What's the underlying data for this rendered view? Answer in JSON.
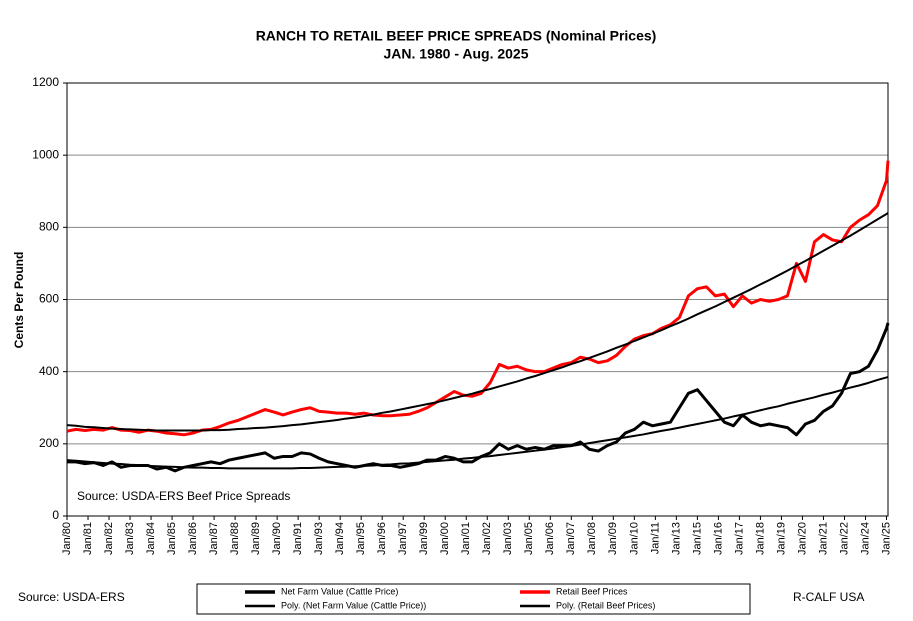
{
  "chart_data": {
    "type": "line",
    "title": "RANCH TO RETAIL BEEF PRICE SPREADS (Nominal Prices)",
    "subtitle": "JAN. 1980 - Aug. 2025",
    "ylabel": "Cents Per Pound",
    "annotation": "Source:  USDA-ERS Beef Price Spreads",
    "footer_source": "Source: USDA-ERS",
    "footer_credit": "R-CALF USA",
    "ylim": [
      0,
      1200
    ],
    "yticks": [
      0,
      200,
      400,
      600,
      800,
      1000,
      1200
    ],
    "xlim": [
      1980,
      2025.583
    ],
    "xticks": [
      {
        "value": 1980,
        "label": "Jan/80"
      },
      {
        "value": 1981.167,
        "label": "Jan/81"
      },
      {
        "value": 1982.333,
        "label": "Jan/82"
      },
      {
        "value": 1983.5,
        "label": "Jan/83"
      },
      {
        "value": 1984.667,
        "label": "Jan/84"
      },
      {
        "value": 1985.833,
        "label": "Jan/85"
      },
      {
        "value": 1987,
        "label": "Jan/86"
      },
      {
        "value": 1988.167,
        "label": "Jan/87"
      },
      {
        "value": 1989.333,
        "label": "Jan/88"
      },
      {
        "value": 1990.5,
        "label": "Jan/89"
      },
      {
        "value": 1991.667,
        "label": "Jan/90"
      },
      {
        "value": 1992.833,
        "label": "Jan/91"
      },
      {
        "value": 1994,
        "label": "Jan/93"
      },
      {
        "value": 1995.167,
        "label": "Jan/94"
      },
      {
        "value": 1996.333,
        "label": "Jan/95"
      },
      {
        "value": 1997.5,
        "label": "Jan/96"
      },
      {
        "value": 1998.667,
        "label": "Jan/97"
      },
      {
        "value": 1999.833,
        "label": "Jan/99"
      },
      {
        "value": 2001,
        "label": "Jan/00"
      },
      {
        "value": 2002.167,
        "label": "Jan/01"
      },
      {
        "value": 2003.333,
        "label": "Jan/02"
      },
      {
        "value": 2004.5,
        "label": "Jan/03"
      },
      {
        "value": 2005.667,
        "label": "Jan/05"
      },
      {
        "value": 2006.833,
        "label": "Jan/06"
      },
      {
        "value": 2008,
        "label": "Jan/07"
      },
      {
        "value": 2009.167,
        "label": "Jan/08"
      },
      {
        "value": 2010.333,
        "label": "Jan/09"
      },
      {
        "value": 2011.5,
        "label": "Jan/10"
      },
      {
        "value": 2012.667,
        "label": "Jan/11"
      },
      {
        "value": 2013.833,
        "label": "Jan/13"
      },
      {
        "value": 2015,
        "label": "Jan/15"
      },
      {
        "value": 2016.167,
        "label": "Jan/16"
      },
      {
        "value": 2017.333,
        "label": "Jan/17"
      },
      {
        "value": 2018.5,
        "label": "Jan/18"
      },
      {
        "value": 2019.667,
        "label": "Jan/19"
      },
      {
        "value": 2020.833,
        "label": "Jan/20"
      },
      {
        "value": 2022,
        "label": "Jan/21"
      },
      {
        "value": 2023.167,
        "label": "Jan/22"
      },
      {
        "value": 2024.333,
        "label": "Jan/24"
      },
      {
        "value": 2025.5,
        "label": "Jan/25"
      }
    ],
    "grid": true,
    "x": [
      1980,
      1980.5,
      1981,
      1981.5,
      1982,
      1982.5,
      1983,
      1983.5,
      1984,
      1984.5,
      1985,
      1985.5,
      1986,
      1986.5,
      1987,
      1987.5,
      1988,
      1988.5,
      1989,
      1989.5,
      1990,
      1990.5,
      1991,
      1991.5,
      1992,
      1992.5,
      1993,
      1993.5,
      1994,
      1994.5,
      1995,
      1995.5,
      1996,
      1996.5,
      1997,
      1997.5,
      1998,
      1998.5,
      1999,
      1999.5,
      2000,
      2000.5,
      2001,
      2001.5,
      2002,
      2002.5,
      2003,
      2003.5,
      2004,
      2004.5,
      2005,
      2005.5,
      2006,
      2006.5,
      2007,
      2007.5,
      2008,
      2008.5,
      2009,
      2009.5,
      2010,
      2010.5,
      2011,
      2011.5,
      2012,
      2012.5,
      2013,
      2013.5,
      2014,
      2014.5,
      2015,
      2015.5,
      2016,
      2016.5,
      2017,
      2017.5,
      2018,
      2018.5,
      2019,
      2019.5,
      2020,
      2020.5,
      2021,
      2021.5,
      2022,
      2022.5,
      2023,
      2023.5,
      2024,
      2024.5,
      2025,
      2025.5,
      2025.583
    ],
    "series": [
      {
        "name": "Net Farm Value (Cattle Price)",
        "color": "#000000",
        "width": 3,
        "values": [
          150,
          150,
          145,
          148,
          140,
          150,
          135,
          140,
          140,
          140,
          130,
          135,
          125,
          135,
          140,
          145,
          150,
          145,
          155,
          160,
          165,
          170,
          175,
          160,
          165,
          165,
          175,
          172,
          160,
          150,
          145,
          140,
          135,
          140,
          145,
          140,
          140,
          135,
          140,
          145,
          155,
          155,
          165,
          160,
          150,
          150,
          165,
          175,
          200,
          185,
          195,
          185,
          190,
          185,
          195,
          195,
          195,
          205,
          185,
          180,
          195,
          205,
          230,
          240,
          260,
          250,
          255,
          260,
          300,
          340,
          350,
          320,
          290,
          260,
          250,
          280,
          260,
          250,
          255,
          250,
          245,
          225,
          255,
          265,
          290,
          305,
          340,
          395,
          400,
          415,
          460,
          520,
          535
        ]
      },
      {
        "name": "Retail Beef Prices",
        "color": "#ff0000",
        "width": 3,
        "values": [
          235,
          240,
          237,
          240,
          238,
          245,
          238,
          237,
          232,
          238,
          235,
          230,
          228,
          225,
          230,
          238,
          240,
          248,
          258,
          265,
          275,
          285,
          295,
          288,
          280,
          288,
          295,
          300,
          290,
          288,
          285,
          285,
          282,
          285,
          280,
          278,
          278,
          280,
          282,
          290,
          300,
          315,
          330,
          345,
          335,
          332,
          340,
          370,
          420,
          410,
          415,
          405,
          400,
          400,
          410,
          420,
          425,
          440,
          435,
          425,
          430,
          445,
          470,
          490,
          500,
          505,
          520,
          530,
          550,
          610,
          630,
          635,
          610,
          615,
          580,
          610,
          590,
          600,
          595,
          600,
          610,
          700,
          650,
          760,
          780,
          765,
          760,
          800,
          820,
          835,
          860,
          930,
          985
        ]
      },
      {
        "name": "Poly. (Net Farm Value (Cattle Price))",
        "color": "#000000",
        "width": 2,
        "values": [
          155,
          153,
          151,
          149,
          147,
          145,
          144,
          142,
          141,
          139,
          138,
          137,
          136,
          135,
          134,
          134,
          133,
          133,
          132,
          132,
          132,
          132,
          132,
          132,
          132,
          132,
          133,
          133,
          134,
          135,
          136,
          137,
          138,
          139,
          140,
          142,
          143,
          145,
          146,
          148,
          150,
          152,
          154,
          156,
          159,
          161,
          164,
          166,
          169,
          172,
          175,
          178,
          181,
          184,
          187,
          191,
          194,
          198,
          202,
          206,
          210,
          214,
          218,
          222,
          226,
          231,
          236,
          240,
          245,
          250,
          255,
          260,
          265,
          270,
          276,
          281,
          287,
          293,
          299,
          304,
          311,
          317,
          323,
          329,
          336,
          342,
          349,
          356,
          362,
          369,
          377,
          384,
          385
        ]
      },
      {
        "name": "Poly. (Retail Beef Prices)",
        "color": "#000000",
        "width": 2,
        "values": [
          252,
          250,
          247,
          246,
          244,
          242,
          241,
          240,
          239,
          238,
          237,
          237,
          237,
          237,
          237,
          237,
          238,
          238,
          239,
          241,
          242,
          244,
          245,
          247,
          249,
          252,
          254,
          257,
          260,
          263,
          266,
          270,
          273,
          277,
          281,
          286,
          290,
          295,
          300,
          305,
          310,
          315,
          321,
          327,
          333,
          339,
          346,
          352,
          359,
          366,
          373,
          381,
          388,
          396,
          404,
          412,
          421,
          429,
          438,
          447,
          456,
          466,
          475,
          485,
          495,
          505,
          515,
          526,
          536,
          547,
          559,
          570,
          581,
          593,
          605,
          617,
          629,
          642,
          654,
          667,
          680,
          694,
          707,
          721,
          735,
          749,
          763,
          777,
          792,
          807,
          822,
          837,
          840
        ]
      }
    ]
  }
}
